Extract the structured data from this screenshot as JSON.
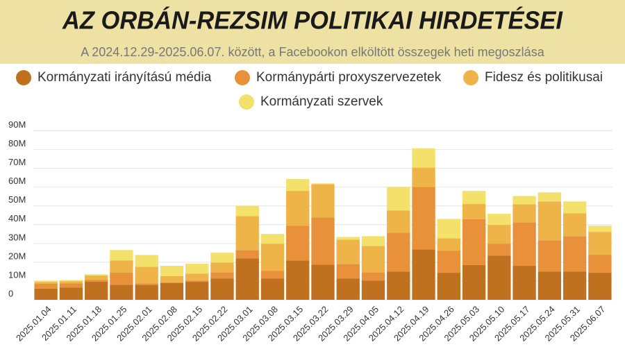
{
  "chart_data": {
    "type": "stacked-bar",
    "title": "AZ ORBÁN-REZSIM POLITIKAI HIRDETÉSEI",
    "subtitle": "A 2024.12.29-2025.06.07. között, a Facebookon elköltött összegek heti megoszlása",
    "categories": [
      "2025.01.04",
      "2025.01.11",
      "2025.01.18",
      "2025.01.25",
      "2025.02.01",
      "2025.02.08",
      "2025.02.15",
      "2025.02.22",
      "2025.03.01",
      "2025.03.08",
      "2025.03.15",
      "2025.03.22",
      "2025.03.29",
      "2025.04.05",
      "2025.04.12",
      "2025.04.19",
      "2025.04.26",
      "2025.05.03",
      "2025.05.10",
      "2025.05.17",
      "2025.05.24",
      "2025.05.31",
      "2025.06.07"
    ],
    "series": [
      {
        "name": "Kormányzati irányítású média",
        "color": "#c0711f",
        "values": [
          6000000,
          6600000,
          9600000,
          8000000,
          8000000,
          8900000,
          9600000,
          11400000,
          22100000,
          11400000,
          21000000,
          18800000,
          11400000,
          10300000,
          15100000,
          26900000,
          14400000,
          18500000,
          23600000,
          18100000,
          15100000,
          15100000,
          14400000
        ]
      },
      {
        "name": "Kormánypárti proxyszervezetek",
        "color": "#e8913a",
        "values": [
          2500000,
          2200000,
          1100000,
          6400000,
          700000,
          500000,
          700000,
          3300000,
          4400000,
          4100000,
          18500000,
          25100000,
          7700000,
          4400000,
          20700000,
          33200000,
          11800000,
          24400000,
          6300000,
          23200000,
          16600000,
          18800000,
          9600000
        ]
      },
      {
        "name": "Fidesz és politikusai",
        "color": "#efb447",
        "values": [
          1000000,
          1000000,
          2200000,
          6600000,
          8900000,
          3200000,
          3700000,
          5200000,
          18100000,
          14400000,
          18500000,
          17700000,
          12900000,
          14000000,
          11800000,
          10300000,
          6600000,
          8100000,
          10000000,
          9600000,
          20700000,
          12200000,
          12200000
        ]
      },
      {
        "name": "Kormányzati szervek",
        "color": "#f3e16c",
        "values": [
          700000,
          700000,
          700000,
          5500000,
          6300000,
          5500000,
          5200000,
          5200000,
          5500000,
          5200000,
          6300000,
          400000,
          1500000,
          5200000,
          12500000,
          10300000,
          10300000,
          7000000,
          5900000,
          4400000,
          4800000,
          6300000,
          3300000
        ]
      }
    ],
    "ylim": [
      0,
      95000000
    ],
    "yticks": [
      {
        "value": 0,
        "label": "0"
      },
      {
        "value": 10000000,
        "label": "10M"
      },
      {
        "value": 20000000,
        "label": "20M"
      },
      {
        "value": 30000000,
        "label": "30M"
      },
      {
        "value": 40000000,
        "label": "40M"
      },
      {
        "value": 50000000,
        "label": "50M"
      },
      {
        "value": 60000000,
        "label": "60M"
      },
      {
        "value": 70000000,
        "label": "70M"
      },
      {
        "value": 80000000,
        "label": "80M"
      },
      {
        "value": 90000000,
        "label": "90M"
      }
    ],
    "grid": true
  }
}
